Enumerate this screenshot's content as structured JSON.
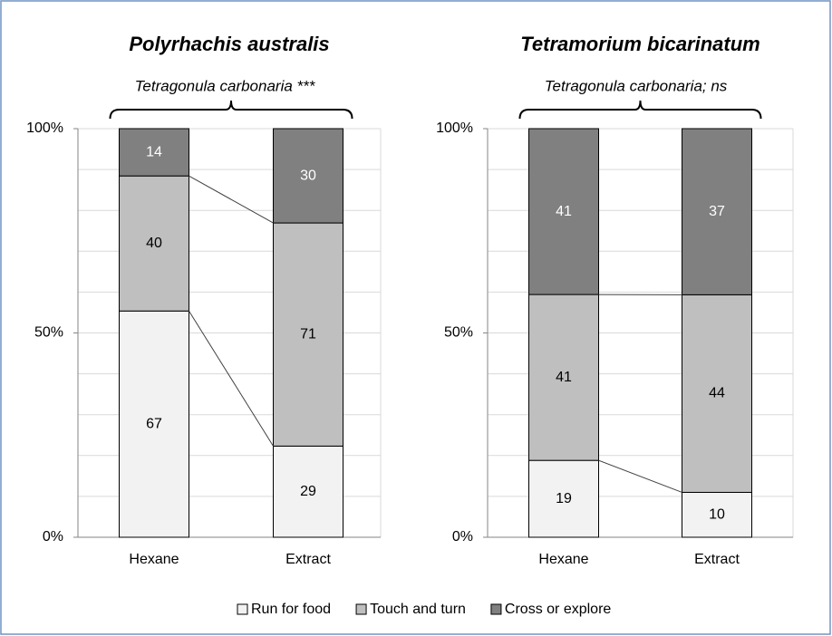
{
  "chart_data": [
    {
      "type": "percent_stacked_bar",
      "title": "Polyrhachis australis",
      "subtitle": "Tetragonula carbonaria ***",
      "categories": [
        "Hexane",
        "Extract"
      ],
      "series": [
        {
          "name": "Run for food",
          "color": "#f2f2f2",
          "values": [
            67,
            29
          ]
        },
        {
          "name": "Touch and turn",
          "color": "#bfbfbf",
          "values": [
            40,
            71
          ]
        },
        {
          "name": "Cross or explore",
          "color": "#808080",
          "values": [
            14,
            30
          ]
        }
      ],
      "ylim": [
        0,
        100
      ],
      "yticks": [
        {
          "value": 0,
          "label": "0%"
        },
        {
          "value": 50,
          "label": "50%"
        },
        {
          "value": 100,
          "label": "100%"
        }
      ],
      "grid_yticks": [
        0,
        10,
        20,
        30,
        40,
        50,
        60,
        70,
        80,
        90,
        100
      ],
      "grid": true
    },
    {
      "type": "percent_stacked_bar",
      "title": "Tetramorium bicarinatum",
      "subtitle": "Tetragonula carbonaria; ns",
      "categories": [
        "Hexane",
        "Extract"
      ],
      "series": [
        {
          "name": "Run for food",
          "color": "#f2f2f2",
          "values": [
            19,
            10
          ]
        },
        {
          "name": "Touch and turn",
          "color": "#bfbfbf",
          "values": [
            41,
            44
          ]
        },
        {
          "name": "Cross or explore",
          "color": "#808080",
          "values": [
            41,
            37
          ]
        }
      ],
      "ylim": [
        0,
        100
      ],
      "yticks": [
        {
          "value": 0,
          "label": "0%"
        },
        {
          "value": 50,
          "label": "50%"
        },
        {
          "value": 100,
          "label": "100%"
        }
      ],
      "grid_yticks": [
        0,
        10,
        20,
        30,
        40,
        50,
        60,
        70,
        80,
        90,
        100
      ],
      "grid": true
    }
  ]
}
